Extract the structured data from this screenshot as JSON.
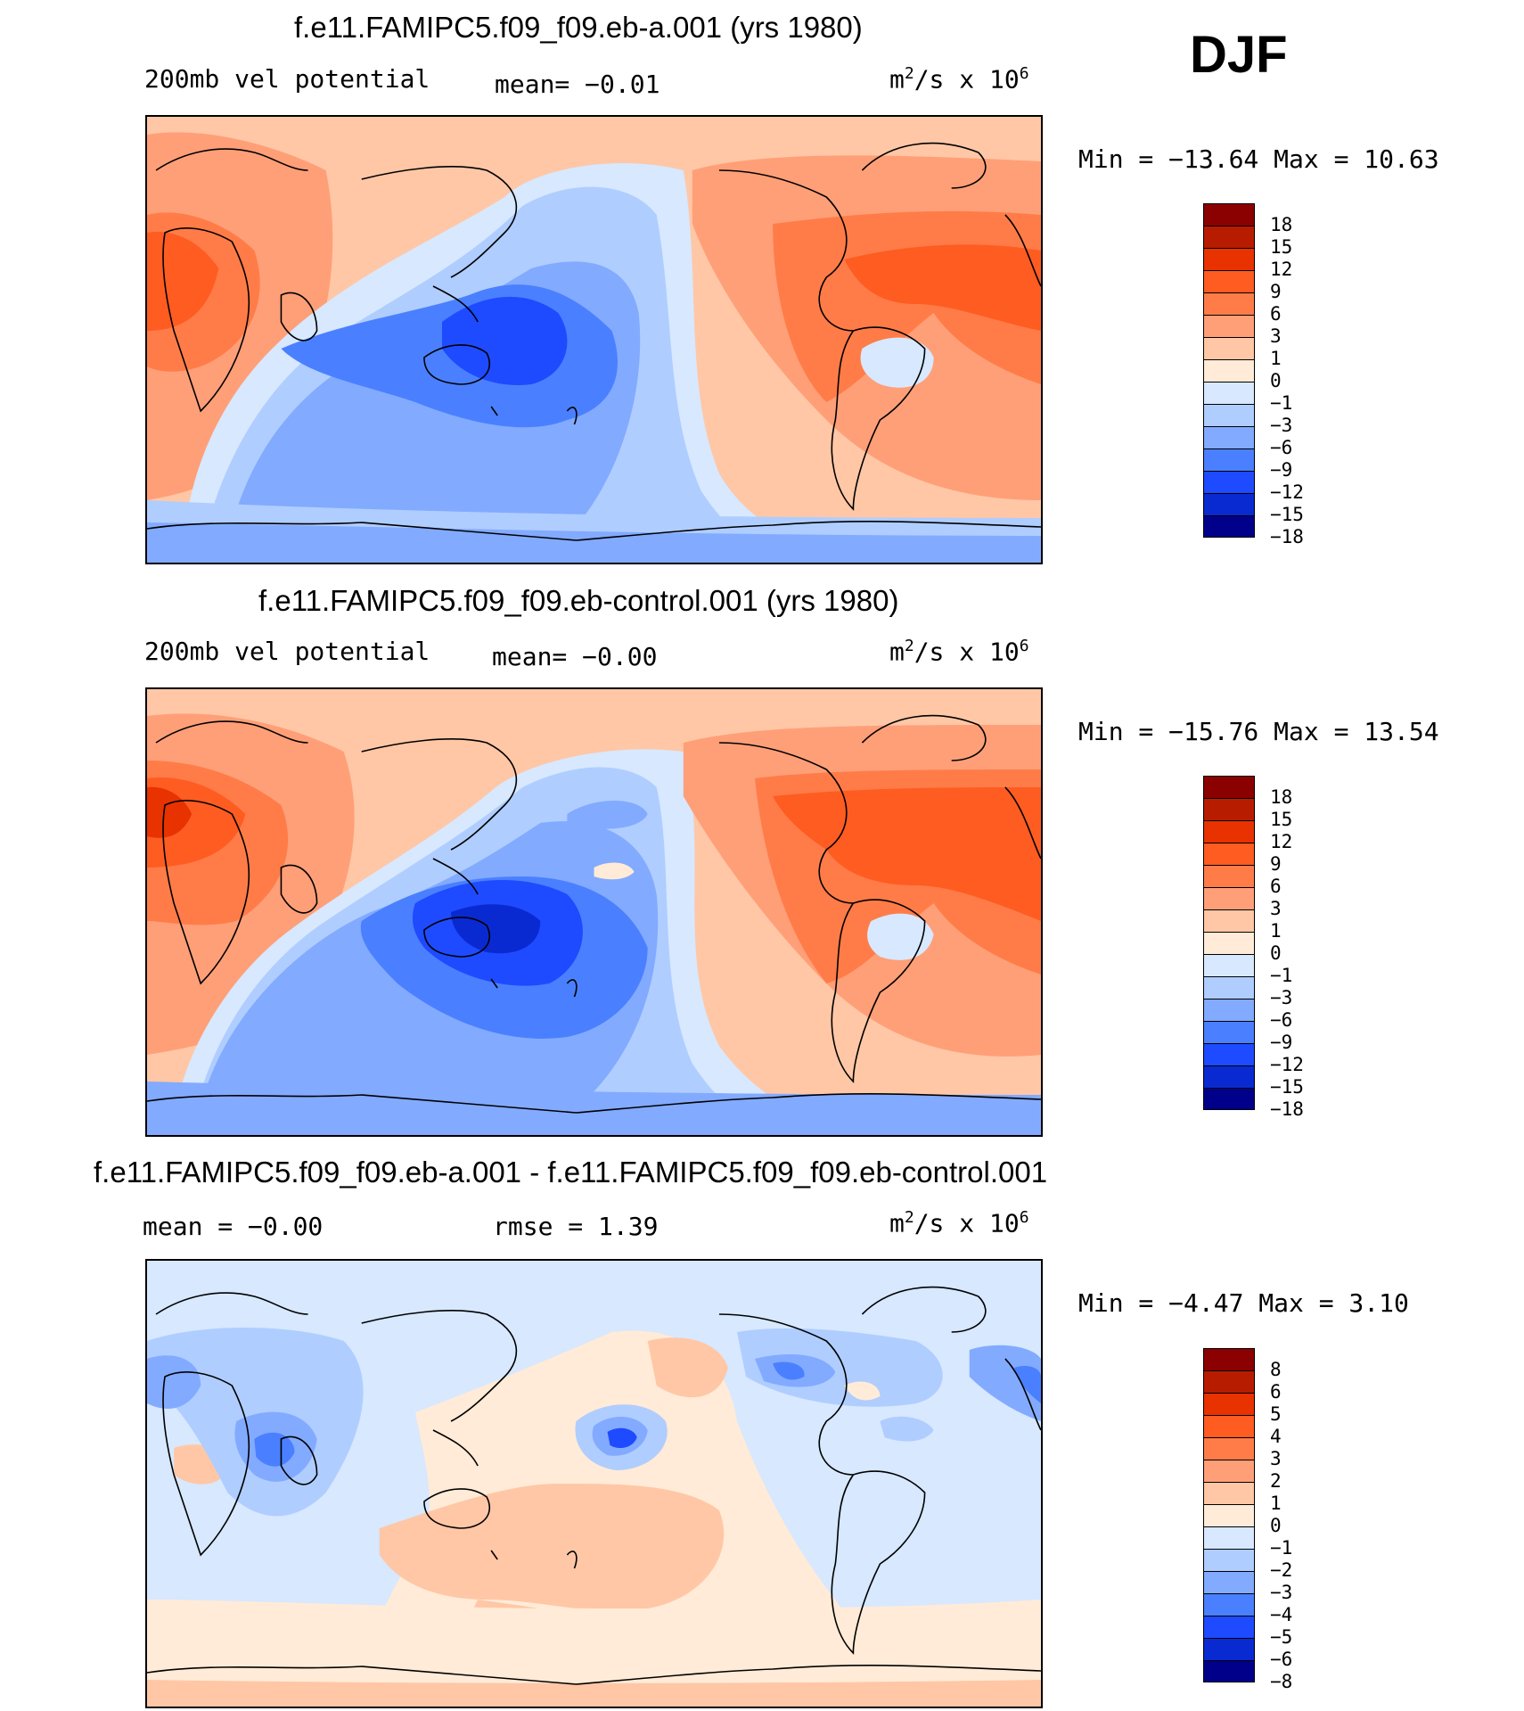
{
  "season": "DJF",
  "units_base": "m",
  "units_exp": "2",
  "units_mid": "/s x 10",
  "units_exp2": "6",
  "panels": [
    {
      "title": "f.e11.FAMIPC5.f09_f09.eb-a.001 (yrs 1980)",
      "left_label": "200mb vel potential",
      "mid_label": "mean=  −0.01",
      "minmax": "Min = −13.64 Max =   10.63",
      "levels": [
        "18",
        "15",
        "12",
        "9",
        "6",
        "3",
        "1",
        "0",
        "−1",
        "−3",
        "−6",
        "−9",
        "−12",
        "−15",
        "−18"
      ],
      "colors": [
        "#8b0000",
        "#b81c00",
        "#e83200",
        "#ff5c22",
        "#ff7c48",
        "#ff9f78",
        "#ffc7a6",
        "#ffebd7",
        "#d7e8ff",
        "#afcdff",
        "#82aaff",
        "#4a80ff",
        "#1e4bff",
        "#0a2ad1",
        "#00008b"
      ]
    },
    {
      "title": "f.e11.FAMIPC5.f09_f09.eb-control.001 (yrs 1980)",
      "left_label": "200mb vel potential",
      "mid_label": "mean=  −0.00",
      "minmax": "Min = −15.76 Max =   13.54",
      "levels": [
        "18",
        "15",
        "12",
        "9",
        "6",
        "3",
        "1",
        "0",
        "−1",
        "−3",
        "−6",
        "−9",
        "−12",
        "−15",
        "−18"
      ],
      "colors": [
        "#8b0000",
        "#b81c00",
        "#e83200",
        "#ff5c22",
        "#ff7c48",
        "#ff9f78",
        "#ffc7a6",
        "#ffebd7",
        "#d7e8ff",
        "#afcdff",
        "#82aaff",
        "#4a80ff",
        "#1e4bff",
        "#0a2ad1",
        "#00008b"
      ]
    },
    {
      "title": "f.e11.FAMIPC5.f09_f09.eb-a.001 - f.e11.FAMIPC5.f09_f09.eb-control.001",
      "left_label": "mean =  −0.00",
      "mid_label": "rmse =    1.39",
      "minmax": "Min =  −4.47 Max =    3.10",
      "levels": [
        "8",
        "6",
        "5",
        "4",
        "3",
        "2",
        "1",
        "0",
        "−1",
        "−2",
        "−3",
        "−4",
        "−5",
        "−6",
        "−8"
      ],
      "colors": [
        "#8b0000",
        "#b81c00",
        "#e83200",
        "#ff5c22",
        "#ff7c48",
        "#ff9f78",
        "#ffc7a6",
        "#ffebd7",
        "#d7e8ff",
        "#afcdff",
        "#82aaff",
        "#4a80ff",
        "#1e4bff",
        "#0a2ad1",
        "#00008b"
      ]
    }
  ]
}
